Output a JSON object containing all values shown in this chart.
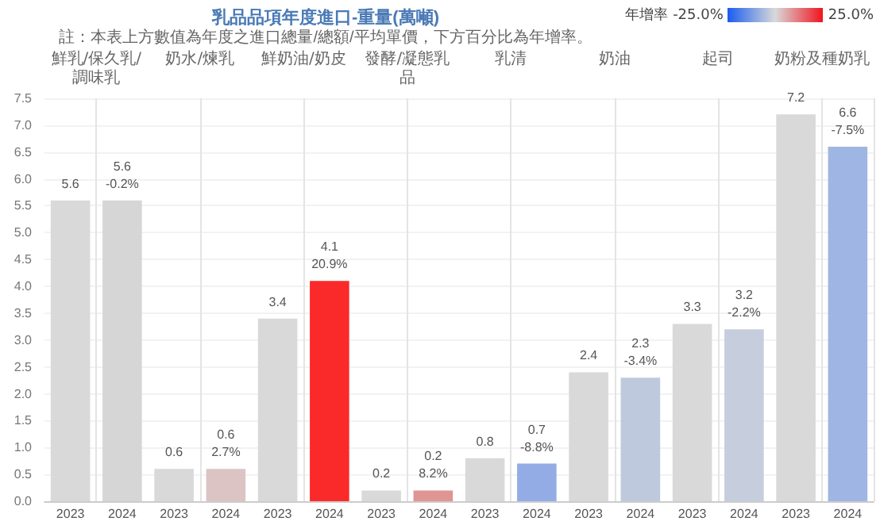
{
  "chart_data": {
    "type": "bar",
    "title": "乳品品項年度進口-重量(萬噸)",
    "subtitle": "註：本表上方數值為年度之進口總量/總額/平均單價，下方百分比為年增率。",
    "clabel": "年增率",
    "annotations": [
      "鮮乳/保久乳/調味乳",
      "奶水/煉乳",
      "鮮奶油/奶皮",
      "發酵/凝態乳品",
      "乳清",
      "奶油",
      "起司",
      "奶粉及種奶乳",
      "-25.0%",
      "25.0%"
    ],
    "categories": [
      "2023",
      "2024",
      "2023",
      "2024",
      "2023",
      "2024",
      "2023",
      "2024",
      "2023",
      "2024",
      "2023",
      "2024",
      "2023",
      "2024",
      "2023",
      "2024"
    ],
    "values": [
      5.6,
      5.6,
      0.6,
      0.6,
      3.4,
      4.1,
      0.2,
      0.2,
      0.8,
      0.7,
      2.4,
      2.3,
      3.3,
      3.2,
      7.2,
      6.6
    ],
    "colors": [
      "#d9d9d9",
      "#d6d6d6",
      "#d9d9d9",
      "#dcc4c4",
      "#d9d9d9",
      "#fa2a2a",
      "#d9d9d9",
      "#e09494",
      "#d9d9d9",
      "#93ace5",
      "#d9d9d9",
      "#bfc9dd",
      "#d9d9d9",
      "#c6cddd",
      "#d9d9d9",
      "#9fb5e3"
    ],
    "value_labels": [
      "5.6",
      "5.6\n-0.2%",
      "0.6",
      "0.6\n2.7%",
      "3.4",
      "4.1\n20.9%",
      "0.2",
      "0.2\n8.2%",
      "0.8",
      "0.7\n-8.8%",
      "2.4",
      "2.3\n-3.4%",
      "3.3",
      "3.2\n-2.2%",
      "7.2",
      "6.6\n-7.5%"
    ],
    "ylim": [
      0,
      7.5
    ],
    "yticks": [
      {
        "value": 0,
        "label": "0.0"
      },
      {
        "value": 0.5,
        "label": "0.5"
      },
      {
        "value": 1,
        "label": "1.0"
      },
      {
        "value": 1.5,
        "label": "1.5"
      },
      {
        "value": 2,
        "label": "2.0"
      },
      {
        "value": 2.5,
        "label": "2.5"
      },
      {
        "value": 3,
        "label": "3.0"
      },
      {
        "value": 3.5,
        "label": "3.5"
      },
      {
        "value": 4,
        "label": "4.0"
      },
      {
        "value": 4.5,
        "label": "4.5"
      },
      {
        "value": 5,
        "label": "5.0"
      },
      {
        "value": 5.5,
        "label": "5.5"
      },
      {
        "value": 6,
        "label": "6.0"
      },
      {
        "value": 6.5,
        "label": "6.5"
      },
      {
        "value": 7,
        "label": "7.0"
      },
      {
        "value": 7.5,
        "label": "7.5"
      }
    ],
    "grid": "y"
  }
}
